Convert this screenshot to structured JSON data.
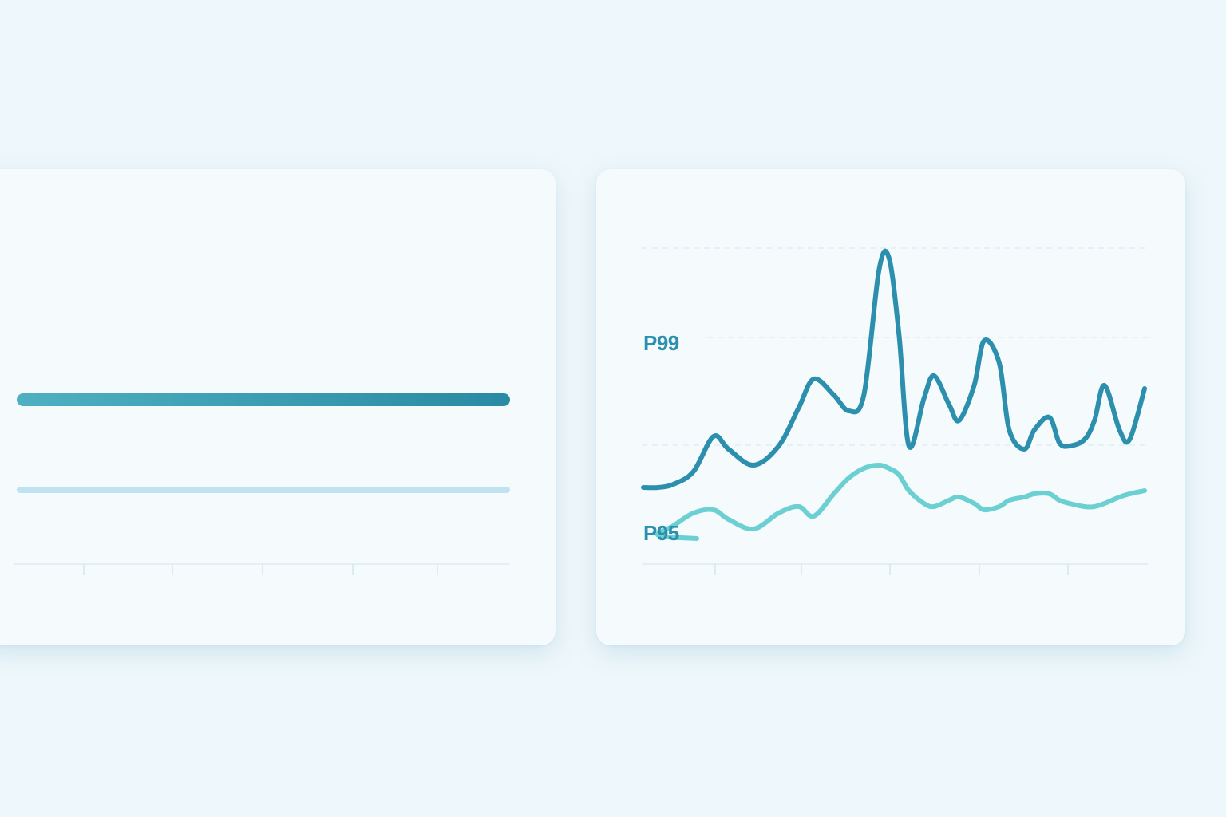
{
  "colors": {
    "background": "#eef7fb",
    "card": "#f5fbfd",
    "grid": "#dcebf2",
    "tick": "#d2e6ee",
    "label": "#2b8fad",
    "p99": "#2b8fad",
    "p95": "#6cd0d2",
    "bar_strong_start": "#4fb0c2",
    "bar_strong_end": "#2a8aa3",
    "bar_light": "#bfe3f1"
  },
  "chart_data": [
    {
      "type": "bar",
      "orientation": "horizontal",
      "title": "",
      "xlabel": "",
      "ylabel": "",
      "categories": [
        "",
        ""
      ],
      "values": [
        1.0,
        1.0
      ],
      "grid": false,
      "legend": "none"
    },
    {
      "type": "line",
      "title": "",
      "xlabel": "",
      "ylabel": "",
      "ylim": [
        0,
        100
      ],
      "grid": true,
      "legend": "inline-left",
      "x": [
        0,
        3,
        6,
        10,
        14,
        17,
        22,
        27,
        31,
        34,
        38,
        41,
        44,
        47,
        49,
        51,
        53,
        56,
        58,
        61,
        63,
        66,
        68,
        71,
        73,
        76,
        78,
        81,
        83,
        85,
        88,
        90,
        92,
        95,
        97,
        100
      ],
      "series": [
        {
          "name": "P99",
          "color": "#2b8fad",
          "values": [
            24,
            24,
            25,
            29,
            40,
            36,
            31,
            37,
            49,
            58,
            53,
            48,
            53,
            92,
            96,
            72,
            37,
            52,
            59,
            50,
            45,
            56,
            70,
            63,
            42,
            36,
            42,
            46,
            38,
            37,
            39,
            45,
            56,
            42,
            39,
            55
          ]
        },
        {
          "name": "P95",
          "color": "#6cd0d2",
          "values": [
            8,
            9,
            12,
            16,
            17,
            14,
            11,
            16,
            18,
            15,
            22,
            27,
            30,
            31,
            30,
            28,
            23,
            19,
            18,
            20,
            21,
            19,
            17,
            18,
            20,
            21,
            22,
            22,
            20,
            19,
            18,
            18,
            19,
            21,
            22,
            23
          ]
        }
      ]
    }
  ]
}
